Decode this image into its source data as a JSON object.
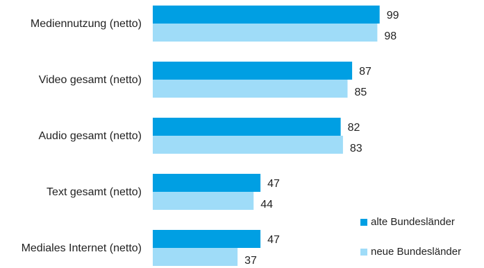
{
  "chart_data": {
    "type": "bar",
    "orientation": "horizontal",
    "categories": [
      "Mediennutzung (netto)",
      "Video gesamt (netto)",
      "Audio gesamt (netto)",
      "Text gesamt (netto)",
      "Mediales Internet (netto)"
    ],
    "series": [
      {
        "name": "alte Bundesländer",
        "color": "#009fe3",
        "values": [
          99,
          87,
          82,
          47,
          47
        ]
      },
      {
        "name": "neue Bundesländer",
        "color": "#9fdcf8",
        "values": [
          98,
          85,
          83,
          44,
          37
        ]
      }
    ],
    "xlim": [
      0,
      100
    ],
    "legend_position": "bottom-right",
    "grid": false
  }
}
